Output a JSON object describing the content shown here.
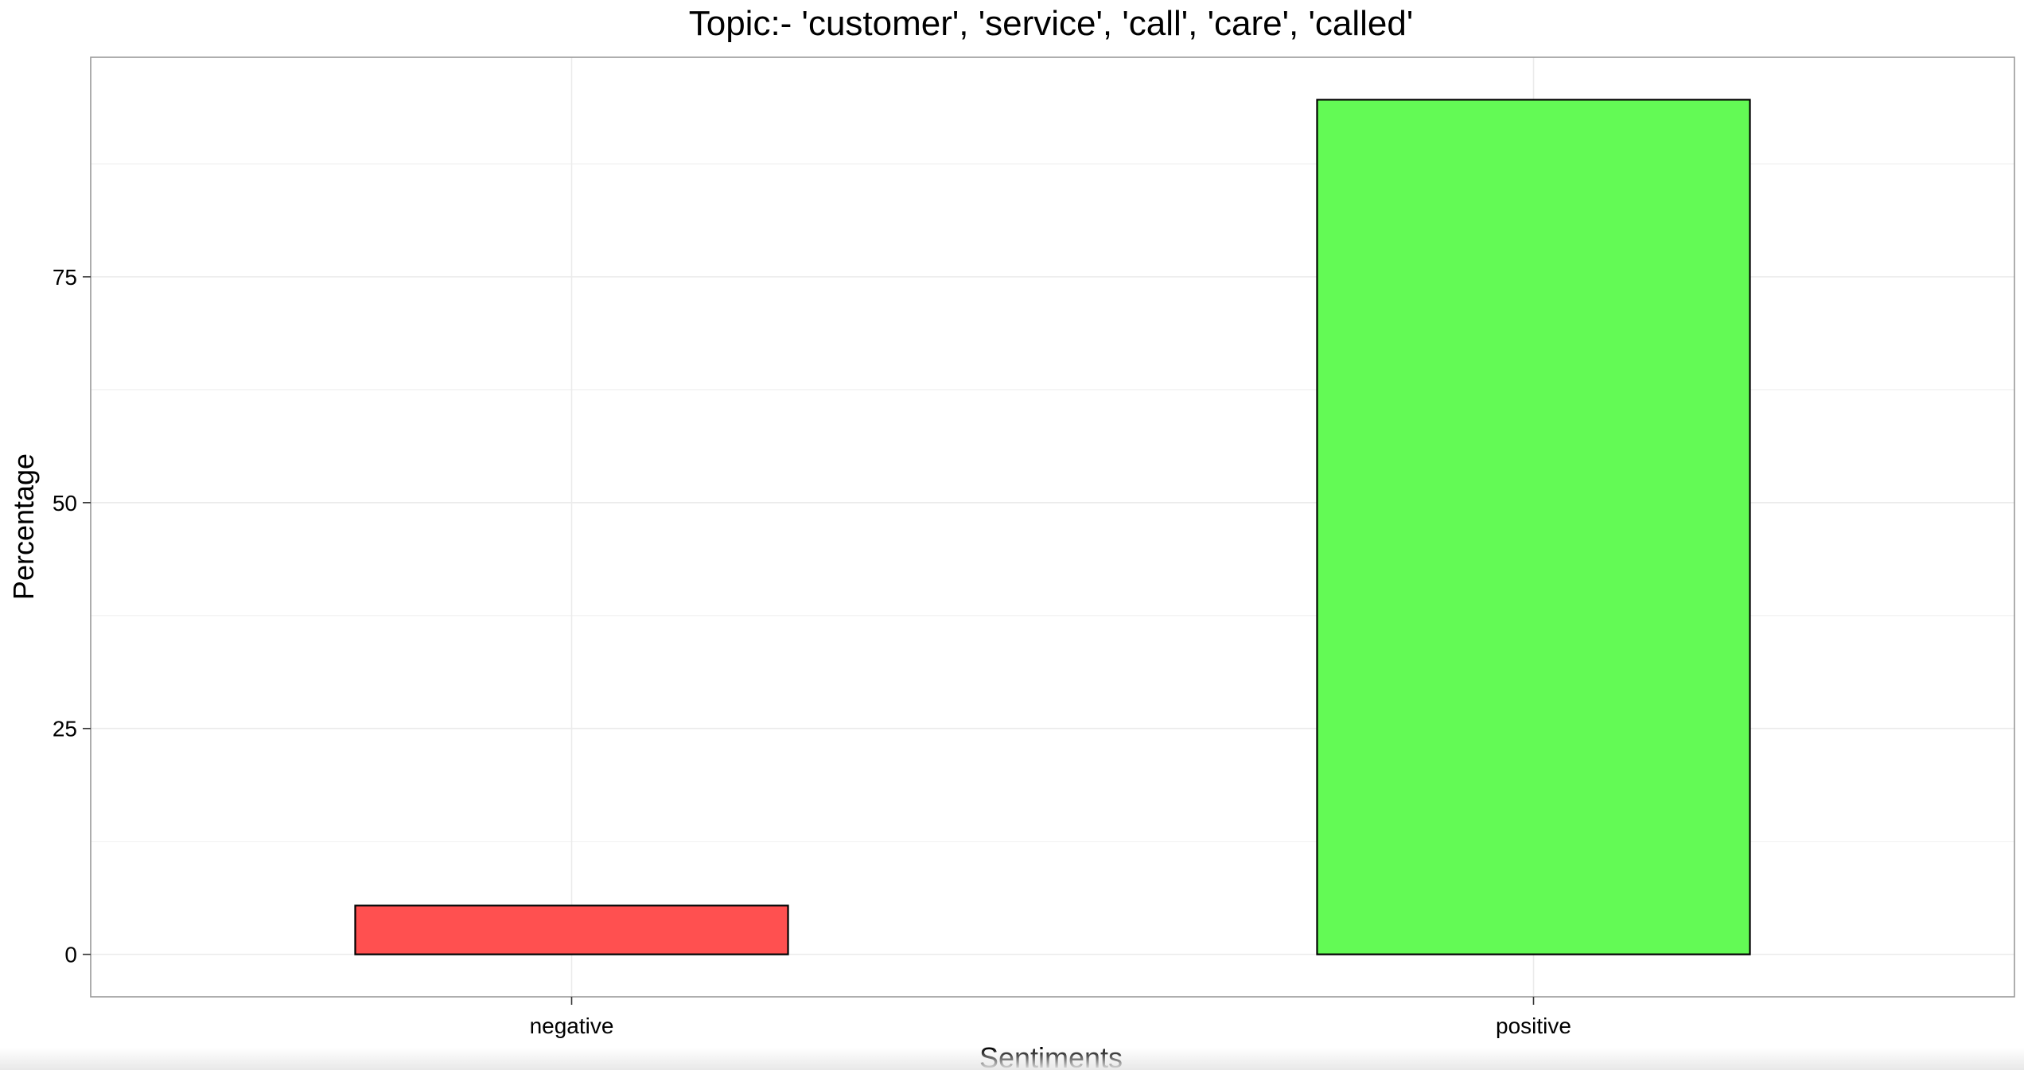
{
  "chart_data": {
    "type": "bar",
    "title": "Topic:- 'customer', 'service', 'call', 'care', 'called'",
    "xlabel": "Sentiments",
    "ylabel": "Percentage",
    "categories": [
      "negative",
      "positive"
    ],
    "values": [
      5.4,
      94.6
    ],
    "colors": [
      "#ff5050",
      "#63fa55"
    ],
    "bar_outline_color": "#000000",
    "ylim": [
      -4.7,
      99.3
    ],
    "yticks": [
      0,
      25,
      50,
      75
    ],
    "ytick_labels": [
      "0",
      "25",
      "50",
      "75"
    ],
    "grid": true,
    "legend": "none"
  }
}
